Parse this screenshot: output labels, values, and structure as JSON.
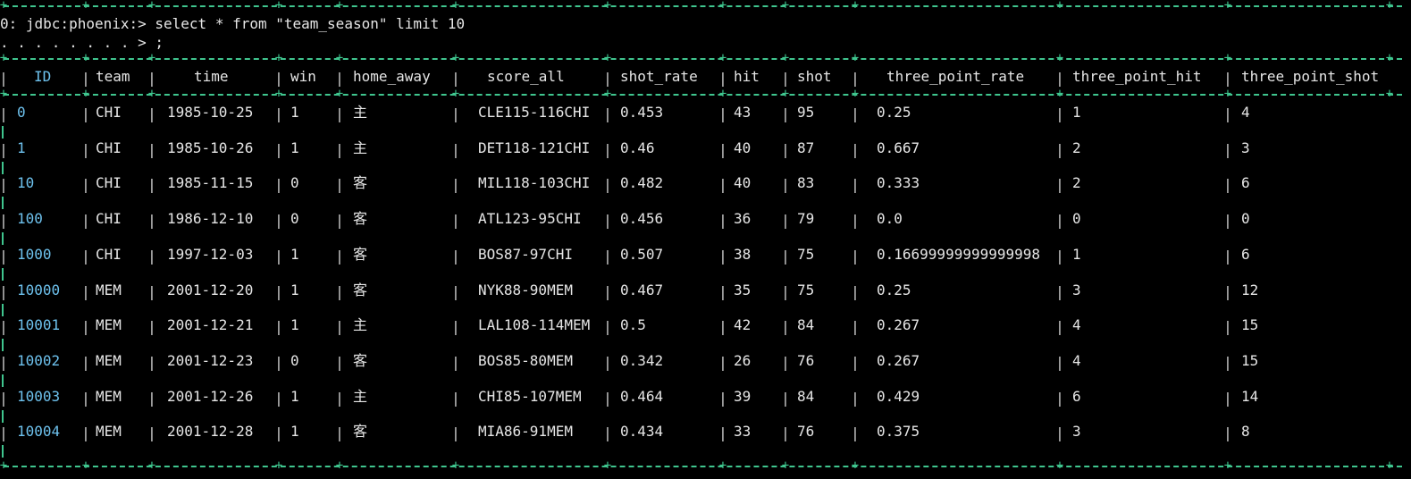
{
  "terminal": {
    "prompt_line": "0: jdbc:phoenix:> select * from \"team_season\" limit 10",
    "continuation_line": ". . . . . . . . > ;"
  },
  "colors": {
    "background": "#000000",
    "border": "#3fc58e",
    "id_text": "#6ec2ee",
    "text": "#e6e6e6"
  },
  "table": {
    "columns": [
      "ID",
      "team",
      "time",
      "win",
      "home_away",
      "score_all",
      "shot_rate",
      "hit",
      "shot",
      "three_point_rate",
      "three_point_hit",
      "three_point_shot"
    ],
    "rows": [
      [
        "0",
        "CHI",
        "1985-10-25",
        "1",
        "主",
        "CLE115-116CHI",
        "0.453",
        "43",
        "95",
        "0.25",
        "1",
        "4"
      ],
      [
        "1",
        "CHI",
        "1985-10-26",
        "1",
        "主",
        "DET118-121CHI",
        "0.46",
        "40",
        "87",
        "0.667",
        "2",
        "3"
      ],
      [
        "10",
        "CHI",
        "1985-11-15",
        "0",
        "客",
        "MIL118-103CHI",
        "0.482",
        "40",
        "83",
        "0.333",
        "2",
        "6"
      ],
      [
        "100",
        "CHI",
        "1986-12-10",
        "0",
        "客",
        "ATL123-95CHI",
        "0.456",
        "36",
        "79",
        "0.0",
        "0",
        "0"
      ],
      [
        "1000",
        "CHI",
        "1997-12-03",
        "1",
        "客",
        "BOS87-97CHI",
        "0.507",
        "38",
        "75",
        "0.16699999999999998",
        "1",
        "6"
      ],
      [
        "10000",
        "MEM",
        "2001-12-20",
        "1",
        "客",
        "NYK88-90MEM",
        "0.467",
        "35",
        "75",
        "0.25",
        "3",
        "12"
      ],
      [
        "10001",
        "MEM",
        "2001-12-21",
        "1",
        "主",
        "LAL108-114MEM",
        "0.5",
        "42",
        "84",
        "0.267",
        "4",
        "15"
      ],
      [
        "10002",
        "MEM",
        "2001-12-23",
        "0",
        "客",
        "BOS85-80MEM",
        "0.342",
        "26",
        "76",
        "0.267",
        "4",
        "15"
      ],
      [
        "10003",
        "MEM",
        "2001-12-26",
        "1",
        "主",
        "CHI85-107MEM",
        "0.464",
        "39",
        "84",
        "0.429",
        "6",
        "14"
      ],
      [
        "10004",
        "MEM",
        "2001-12-28",
        "1",
        "客",
        "MIA86-91MEM",
        "0.434",
        "33",
        "76",
        "0.375",
        "3",
        "8"
      ]
    ]
  }
}
